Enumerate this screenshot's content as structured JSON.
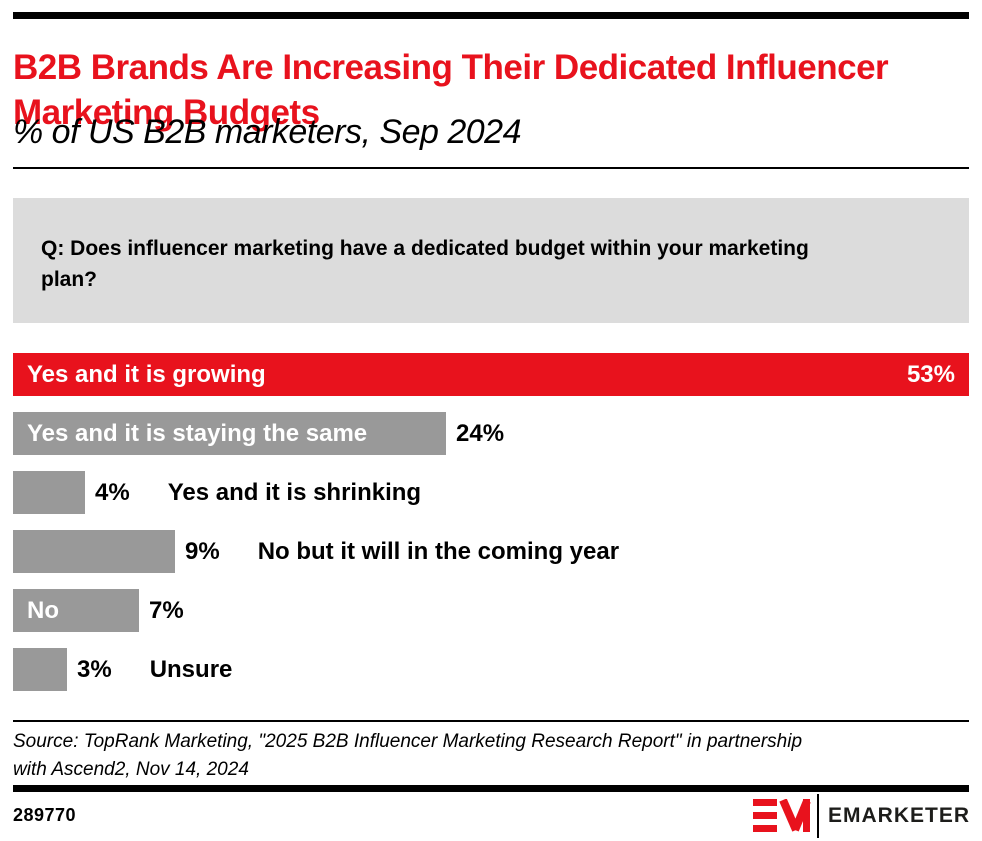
{
  "question": {
    "text": "Q: Does influencer marketing have a dedicated budget within your marketing plan?"
  },
  "chart_data": {
    "type": "bar",
    "orientation": "horizontal",
    "title": "B2B Brands Are Increasing Their Dedicated Influencer Marketing Budgets",
    "subtitle": "% of US B2B marketers, Sep 2024",
    "xlabel": "",
    "ylabel": "",
    "xlim": [
      0,
      53
    ],
    "grid": false,
    "legend": false,
    "categories": [
      "Yes and it is growing",
      "Yes and it is staying the same",
      "Yes and it is shrinking",
      "No but it will in the coming year",
      "No",
      "Unsure"
    ],
    "values": [
      53,
      24,
      4,
      9,
      7,
      3
    ],
    "value_labels": [
      "53%",
      "24%",
      "4%",
      "9%",
      "7%",
      "3%"
    ],
    "bar_colors": [
      "#e8121d",
      "#999999",
      "#999999",
      "#999999",
      "#999999",
      "#999999"
    ],
    "label_inside": [
      true,
      true,
      false,
      false,
      true,
      false
    ],
    "value_inside": [
      true,
      false,
      false,
      false,
      false,
      false
    ]
  },
  "footer": {
    "source": "Source: TopRank Marketing, \"2025 B2B Influencer Marketing Research Report\" in partnership with Ascend2, Nov 14, 2024",
    "chart_id": "289770",
    "brand": "EMARKETER"
  },
  "colors": {
    "accent_red": "#e8121d",
    "bar_gray": "#999999",
    "question_bg": "#dcdcdc",
    "rule_black": "#000000"
  }
}
